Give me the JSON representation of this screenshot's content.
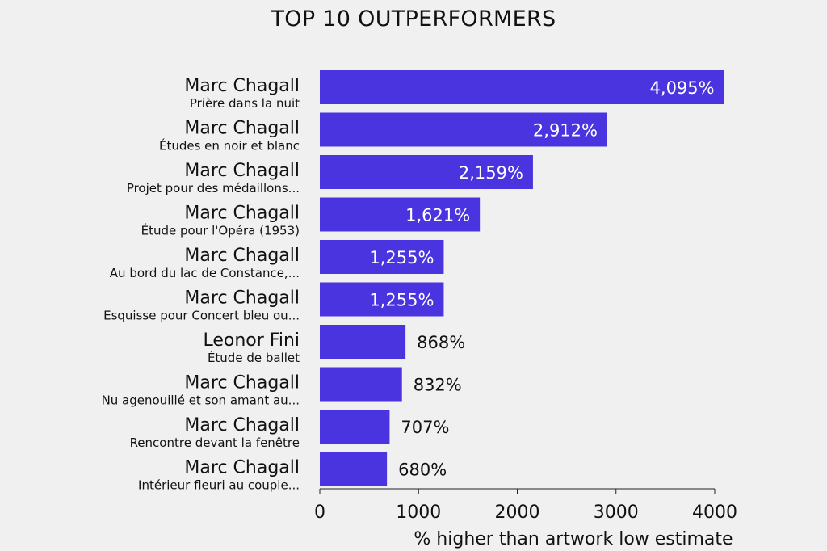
{
  "chart_data": {
    "type": "bar",
    "orientation": "horizontal",
    "title": "TOP 10 OUTPERFORMERS",
    "xlabel": "% higher than artwork low estimate",
    "xlim": [
      0,
      4000
    ],
    "xticks": [
      0,
      1000,
      2000,
      3000,
      4000
    ],
    "bar_color": "#4a34e0",
    "items": [
      {
        "artist": "Marc Chagall",
        "artwork": "Prière dans la nuit",
        "value": 4095,
        "label": "4,095%"
      },
      {
        "artist": "Marc Chagall",
        "artwork": "Études en noir et blanc",
        "value": 2912,
        "label": "2,912%"
      },
      {
        "artist": "Marc Chagall",
        "artwork": "Projet pour des médaillons...",
        "value": 2159,
        "label": "2,159%"
      },
      {
        "artist": "Marc Chagall",
        "artwork": "Étude pour l'Opéra (1953)",
        "value": 1621,
        "label": "1,621%"
      },
      {
        "artist": "Marc Chagall",
        "artwork": "Au bord du lac de Constance,...",
        "value": 1255,
        "label": "1,255%"
      },
      {
        "artist": "Marc Chagall",
        "artwork": "Esquisse pour Concert bleu ou...",
        "value": 1255,
        "label": "1,255%"
      },
      {
        "artist": "Leonor Fini",
        "artwork": "Étude de ballet",
        "value": 868,
        "label": "868%"
      },
      {
        "artist": "Marc Chagall",
        "artwork": "Nu agenouillé et son amant au...",
        "value": 832,
        "label": "832%"
      },
      {
        "artist": "Marc Chagall",
        "artwork": "Rencontre devant la fenêtre",
        "value": 707,
        "label": "707%"
      },
      {
        "artist": "Marc Chagall",
        "artwork": "Intérieur fleuri au couple...",
        "value": 680,
        "label": "680%"
      }
    ]
  }
}
